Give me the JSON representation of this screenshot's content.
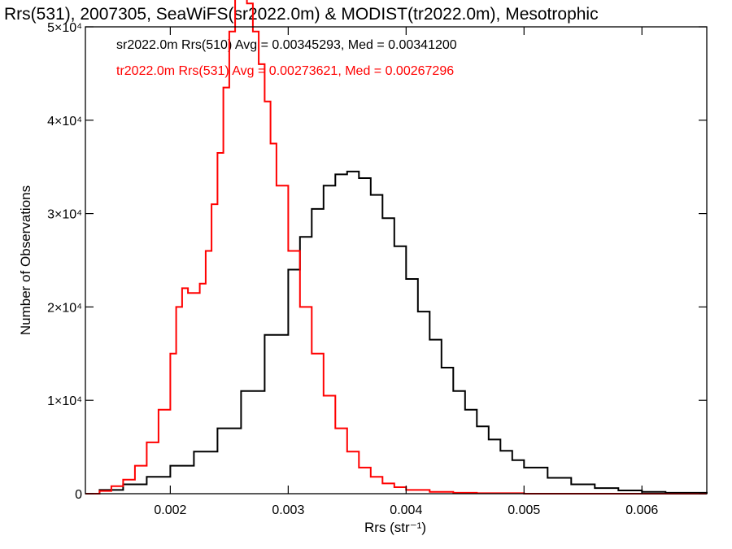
{
  "chart_data": {
    "type": "line",
    "title": "Rrs(531), 2007305, SeaWiFS(sr2022.0m) & MODIST(tr2022.0m), Mesotrophic",
    "xlabel": "Rrs (str⁻¹)",
    "ylabel": "Number of Observations",
    "xlim": [
      0.00128,
      0.00655
    ],
    "ylim": [
      0,
      50000
    ],
    "x_ticks": [
      {
        "value": 0.002,
        "label": "0.002"
      },
      {
        "value": 0.003,
        "label": "0.003"
      },
      {
        "value": 0.004,
        "label": "0.004"
      },
      {
        "value": 0.005,
        "label": "0.005"
      },
      {
        "value": 0.006,
        "label": "0.006"
      }
    ],
    "y_ticks": [
      {
        "value": 0,
        "label": "0"
      },
      {
        "value": 10000,
        "label": "1×10⁴"
      },
      {
        "value": 20000,
        "label": "2×10⁴"
      },
      {
        "value": 30000,
        "label": "3×10⁴"
      },
      {
        "value": 40000,
        "label": "4×10⁴"
      },
      {
        "value": 50000,
        "label": "5×10⁴"
      }
    ],
    "grid": false,
    "series": [
      {
        "name": "sr2022.0m Rrs(510)",
        "color": "#000000",
        "stats_label": "sr2022.0m Rrs(510) Avg = 0.00345293, Med = 0.00341200",
        "x": [
          0.00128,
          0.0014,
          0.0016,
          0.0018,
          0.002,
          0.0022,
          0.0024,
          0.0026,
          0.0028,
          0.003,
          0.0031,
          0.0032,
          0.0033,
          0.0034,
          0.0035,
          0.0036,
          0.0037,
          0.0038,
          0.0039,
          0.004,
          0.0041,
          0.0042,
          0.0043,
          0.0044,
          0.0045,
          0.0046,
          0.0047,
          0.0048,
          0.0049,
          0.005,
          0.0052,
          0.0054,
          0.0056,
          0.0058,
          0.006,
          0.0062,
          0.00655
        ],
        "y": [
          0,
          400,
          1000,
          1800,
          3000,
          4500,
          7000,
          11000,
          17000,
          24000,
          27500,
          30500,
          33000,
          34200,
          34500,
          33800,
          32000,
          29500,
          26500,
          23000,
          19500,
          16500,
          13500,
          11000,
          9000,
          7200,
          5800,
          4600,
          3600,
          2800,
          1700,
          1000,
          600,
          350,
          200,
          100,
          0
        ]
      },
      {
        "name": "tr2022.0m Rrs(531)",
        "color": "#ff0000",
        "stats_label": "tr2022.0m Rrs(531) Avg = 0.00273621, Med = 0.00267296",
        "x": [
          0.00128,
          0.0014,
          0.0015,
          0.0016,
          0.0017,
          0.0018,
          0.0019,
          0.002,
          0.00205,
          0.0021,
          0.00215,
          0.0022,
          0.00225,
          0.0023,
          0.00235,
          0.0024,
          0.00245,
          0.0025,
          0.00255,
          0.0026,
          0.00263,
          0.00265,
          0.0027,
          0.00275,
          0.0028,
          0.00285,
          0.0029,
          0.003,
          0.0031,
          0.0032,
          0.0033,
          0.0034,
          0.0035,
          0.0036,
          0.0037,
          0.0038,
          0.0039,
          0.004,
          0.0042,
          0.0044,
          0.0046,
          0.005,
          0.00655
        ],
        "y": [
          0,
          300,
          800,
          1500,
          3000,
          5500,
          9000,
          15000,
          20000,
          22000,
          21500,
          21500,
          22500,
          26000,
          31000,
          36500,
          43500,
          49500,
          53000,
          53800,
          53500,
          52500,
          49500,
          46000,
          42000,
          37500,
          33000,
          26000,
          20000,
          15000,
          10500,
          7000,
          4500,
          2800,
          1800,
          1100,
          700,
          400,
          200,
          100,
          50,
          0,
          0
        ]
      }
    ]
  }
}
